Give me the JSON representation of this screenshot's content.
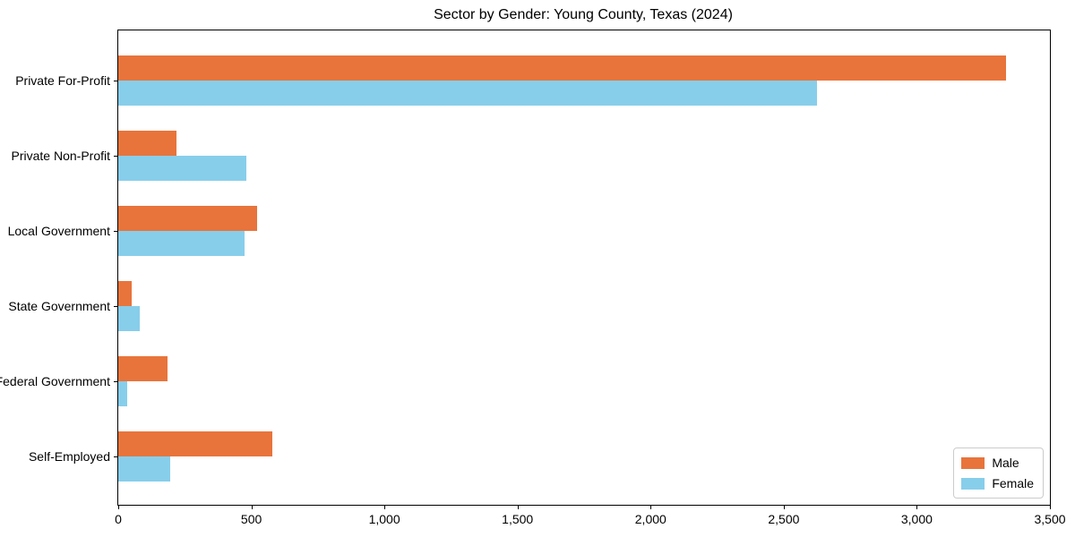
{
  "chart_data": {
    "type": "bar",
    "orientation": "horizontal",
    "title": "Sector by Gender: Young County, Texas (2024)",
    "categories": [
      "Private For-Profit",
      "Private Non-Profit",
      "Local Government",
      "State Government",
      "Federal Government",
      "Self-Employed"
    ],
    "series": [
      {
        "name": "Male",
        "color": "#E8743B",
        "values": [
          3335,
          220,
          520,
          50,
          185,
          580
        ]
      },
      {
        "name": "Female",
        "color": "#87CEEB",
        "values": [
          2625,
          480,
          475,
          80,
          35,
          195
        ]
      }
    ],
    "xlabel": "",
    "ylabel": "",
    "xlim": [
      0,
      3500
    ],
    "xticks": [
      0,
      500,
      1000,
      1500,
      2000,
      2500,
      3000,
      3500
    ],
    "xtick_labels": [
      "0",
      "500",
      "1,000",
      "1,500",
      "2,000",
      "2,500",
      "3,000",
      "3,500"
    ],
    "grid": false,
    "legend": {
      "position": "lower right",
      "entries": [
        "Male",
        "Female"
      ]
    }
  }
}
